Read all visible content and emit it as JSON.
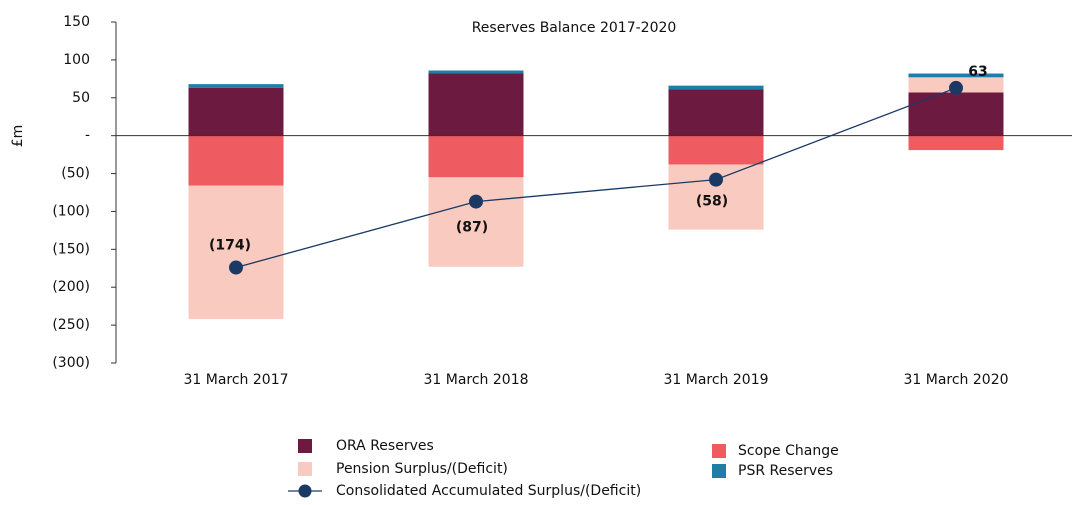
{
  "chart_data": {
    "type": "bar",
    "title": "Reserves Balance 2017-2020",
    "y_label": "£m",
    "categories": [
      "31 March 2017",
      "31 March 2018",
      "31 March 2019",
      "31 March 2020"
    ],
    "series": [
      {
        "name": "ORA Reserves",
        "type": "bar",
        "color": "#6d1a40",
        "values": [
          63,
          82,
          61,
          57
        ]
      },
      {
        "name": "Scope Change",
        "type": "bar",
        "color": "#ee5c62",
        "values": [
          -66,
          -55,
          -38,
          -19
        ]
      },
      {
        "name": "Pension Surplus/(Deficit)",
        "type": "bar",
        "color": "#f9cbc0",
        "values": [
          -176,
          -118,
          -86,
          20
        ]
      },
      {
        "name": "PSR Reserves",
        "type": "bar",
        "color": "#1f7ea6",
        "values": [
          5,
          4,
          5,
          5
        ]
      },
      {
        "name": "Consolidated Accumulated Surplus/(Deficit)",
        "type": "line",
        "color": "#1b3a63",
        "values": [
          -174,
          -87,
          -58,
          63
        ],
        "value_labels": [
          "(174)",
          "(87)",
          "(58)",
          "63"
        ]
      }
    ],
    "ylim": [
      -300,
      150
    ],
    "yticks": [
      {
        "value": -300,
        "label": "(300)"
      },
      {
        "value": -250,
        "label": "(250)"
      },
      {
        "value": -200,
        "label": "(200)"
      },
      {
        "value": -150,
        "label": "(150)"
      },
      {
        "value": -100,
        "label": "(100)"
      },
      {
        "value": -50,
        "label": "(50)"
      },
      {
        "value": 0,
        "label": "-"
      },
      50,
      100,
      150
    ],
    "legend": "bottom"
  }
}
